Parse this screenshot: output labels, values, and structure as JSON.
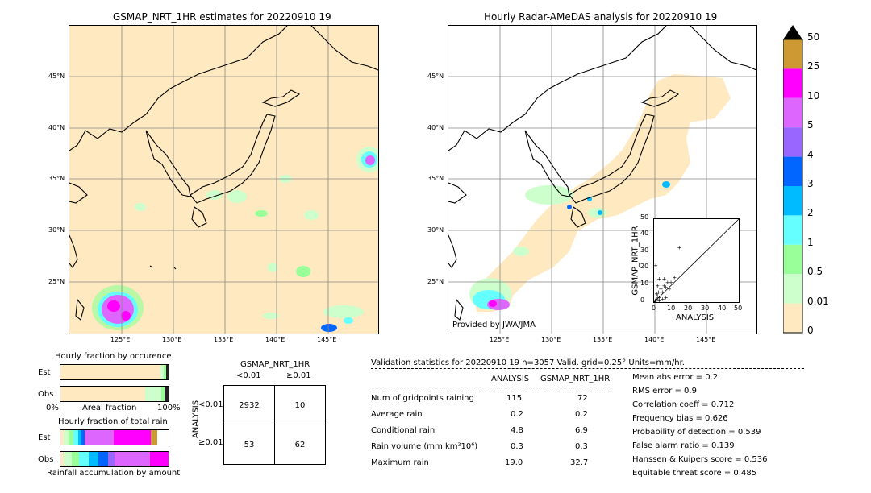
{
  "left_map": {
    "title": "GSMAP_NRT_1HR estimates for 20220910 19",
    "lat_labels": [
      "45°N",
      "40°N",
      "35°N",
      "30°N",
      "25°N"
    ],
    "lon_labels": [
      "125°E",
      "130°E",
      "135°E",
      "140°E",
      "145°E"
    ]
  },
  "right_map": {
    "title": "Hourly Radar-AMeDAS analysis for 20220910 19",
    "lat_labels": [
      "45°N",
      "40°N",
      "35°N",
      "30°N",
      "25°N"
    ],
    "lon_labels": [
      "125°E",
      "130°E",
      "135°E",
      "140°E",
      "145°E"
    ],
    "credit": "Provided by JWA/JMA"
  },
  "scatter_inset": {
    "ylabel": "GSMAP_NRT_1HR",
    "xlabel": "ANALYSIS",
    "ticks": [
      "0",
      "10",
      "20",
      "30",
      "40",
      "50"
    ]
  },
  "colorbar": {
    "labels": [
      "50",
      "25",
      "10",
      "5",
      "4",
      "3",
      "2",
      "1",
      "0.5",
      "0.01",
      "0"
    ],
    "colors": [
      "#cc9933",
      "#ff00ff",
      "#dd66ff",
      "#9966ff",
      "#0066ff",
      "#00bbff",
      "#66ffff",
      "#99ff99",
      "#ccffcc",
      "#ffe9c0"
    ]
  },
  "occurrence": {
    "title": "Hourly fraction by occurence",
    "rows": [
      "Est",
      "Obs"
    ],
    "axis_left": "0%",
    "axis_mid": "Areal fraction",
    "axis_right": "100%"
  },
  "accumulation": {
    "title": "Hourly fraction of total rain",
    "rows": [
      "Est",
      "Obs"
    ],
    "footer": "Rainfall accumulation by amount"
  },
  "contingency": {
    "title": "GSMAP_NRT_1HR",
    "col_lt": "<0.01",
    "col_ge": "≥0.01",
    "side": "ANALYSIS",
    "row_lt": "<0.01",
    "row_ge": "≥0.01",
    "cells": [
      "2932",
      "10",
      "53",
      "62"
    ]
  },
  "validation": {
    "header": "Validation statistics for 20220910 19  n=3057 Valid. grid=0.25° Units=mm/hr.",
    "col_analysis": "ANALYSIS",
    "col_gsmap": "GSMAP_NRT_1HR",
    "rows": [
      {
        "label": "Num of gridpoints raining",
        "a": "115",
        "g": "72"
      },
      {
        "label": "Average rain",
        "a": "0.2",
        "g": "0.2"
      },
      {
        "label": "Conditional rain",
        "a": "4.8",
        "g": "6.9"
      },
      {
        "label": "Rain volume (mm km²10⁶)",
        "a": "0.3",
        "g": "0.3"
      },
      {
        "label": "Maximum rain",
        "a": "19.0",
        "g": "32.7"
      }
    ],
    "scores": [
      "Mean abs error =    0.2",
      "RMS error =    0.9",
      "Correlation coeff =  0.712",
      "Frequency bias =  0.626",
      "Probability of detection =  0.539",
      "False alarm ratio =  0.139",
      "Hanssen & Kuipers score =  0.536",
      "Equitable threat score =  0.485"
    ]
  },
  "chart_data": {
    "type": "scatter",
    "title": "",
    "xlabel": "ANALYSIS",
    "ylabel": "GSMAP_NRT_1HR",
    "xlim": [
      0,
      50
    ],
    "ylim": [
      0,
      50
    ],
    "points": [
      [
        0.5,
        0.4
      ],
      [
        1,
        1.2
      ],
      [
        1.5,
        2
      ],
      [
        2,
        4
      ],
      [
        2.5,
        6
      ],
      [
        3,
        3
      ],
      [
        4,
        8
      ],
      [
        5,
        6
      ],
      [
        6,
        10
      ],
      [
        7,
        9
      ],
      [
        8,
        12
      ],
      [
        3,
        14
      ],
      [
        4,
        16
      ],
      [
        6,
        14
      ],
      [
        9,
        8
      ],
      [
        10,
        12
      ],
      [
        2,
        10
      ],
      [
        1,
        22
      ],
      [
        15,
        33
      ],
      [
        5,
        2
      ],
      [
        12,
        15
      ],
      [
        3,
        1
      ],
      [
        1.5,
        5
      ],
      [
        7,
        3
      ]
    ]
  }
}
